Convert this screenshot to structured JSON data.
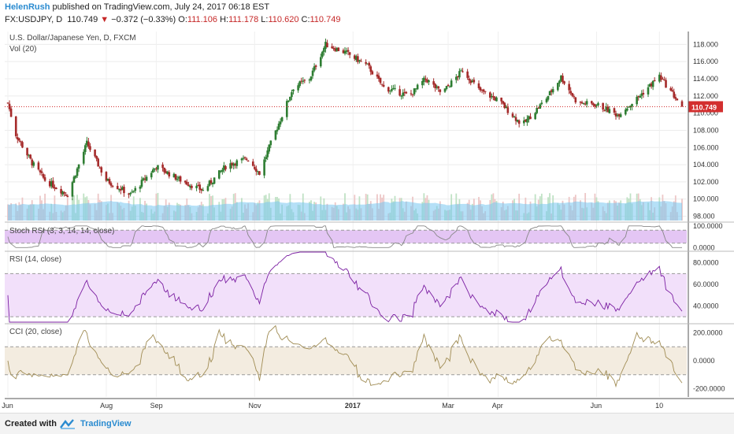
{
  "header": {
    "author": "HelenRush",
    "published": "published on TradingView.com, July 24, 2017 06:18 EST",
    "symbol": "FX:USDJPY, D",
    "last": "110.749",
    "down_arrow": "▼",
    "change": "−0.372 (−0.33%)",
    "o_label": "O:",
    "o_value": "111.106",
    "h_label": "H:",
    "h_value": "111.178",
    "l_label": "L:",
    "l_value": "110.620",
    "c_label": "C:",
    "c_value": "110.749"
  },
  "footer": {
    "created": "Created with",
    "brand": "TradingView"
  },
  "chart_data": {
    "type": "candlestick",
    "title": "U.S. Dollar/Japanese Yen, D, FXCM",
    "volume_label": "Vol (20)",
    "last_price_label": "110.749",
    "last_price_color": "#d32f2f",
    "up_color": "#2e7d32",
    "down_color": "#a52a2a",
    "volume_ma_color": "#79c6f0",
    "price_axis": {
      "ylim": [
        97.5,
        119.5
      ],
      "ticks": [
        "118.000",
        "116.000",
        "114.000",
        "112.000",
        "110.000",
        "108.000",
        "106.000",
        "104.000",
        "102.000",
        "100.000",
        "98.000"
      ]
    },
    "time_axis": {
      "labels": [
        "Jun",
        "Aug",
        "Sep",
        "Nov",
        "2017",
        "Mar",
        "Apr",
        "Jun",
        "10"
      ]
    },
    "price_anchors": [
      [
        "2016-06-01",
        111.2
      ],
      [
        "2016-06-06",
        107.5
      ],
      [
        "2016-06-16",
        104.2
      ],
      [
        "2016-06-24",
        102.2
      ],
      [
        "2016-07-08",
        100.5
      ],
      [
        "2016-07-20",
        106.5
      ],
      [
        "2016-08-01",
        102.2
      ],
      [
        "2016-08-16",
        100.5
      ],
      [
        "2016-09-01",
        103.8
      ],
      [
        "2016-09-15",
        102.3
      ],
      [
        "2016-09-30",
        101.0
      ],
      [
        "2016-10-15",
        104.0
      ],
      [
        "2016-10-28",
        104.7
      ],
      [
        "2016-11-04",
        103.0
      ],
      [
        "2016-11-10",
        106.0
      ],
      [
        "2016-11-25",
        113.0
      ],
      [
        "2016-12-05",
        114.0
      ],
      [
        "2016-12-15",
        118.0
      ],
      [
        "2016-12-28",
        117.0
      ],
      [
        "2017-01-10",
        115.5
      ],
      [
        "2017-01-20",
        113.0
      ],
      [
        "2017-02-05",
        112.0
      ],
      [
        "2017-02-15",
        114.0
      ],
      [
        "2017-02-25",
        112.3
      ],
      [
        "2017-03-10",
        115.0
      ],
      [
        "2017-03-20",
        112.7
      ],
      [
        "2017-04-01",
        111.5
      ],
      [
        "2017-04-16",
        108.6
      ],
      [
        "2017-04-30",
        111.5
      ],
      [
        "2017-05-10",
        114.2
      ],
      [
        "2017-05-20",
        111.2
      ],
      [
        "2017-06-01",
        111.0
      ],
      [
        "2017-06-14",
        109.8
      ],
      [
        "2017-06-25",
        111.5
      ],
      [
        "2017-07-10",
        114.3
      ],
      [
        "2017-07-24",
        110.75
      ]
    ],
    "indicators": {
      "stoch_rsi": {
        "label": "Stoch RSI (3, 3, 14, 14, close)",
        "ylim": [
          -10,
          110
        ],
        "ticks": [
          "100.0000",
          "0.0000"
        ],
        "band": [
          20,
          80
        ],
        "band_color": "#e4c6f4",
        "line_color": "#888888"
      },
      "rsi": {
        "label": "RSI (14, close)",
        "ylim": [
          25,
          90
        ],
        "ticks": [
          "80.0000",
          "60.0000",
          "40.0000"
        ],
        "band": [
          30,
          70
        ],
        "band_color": "#f2e0fa",
        "line_color": "#7b1fa2"
      },
      "cci": {
        "label": "CCI (20, close)",
        "ylim": [
          -260,
          260
        ],
        "ticks": [
          "200.0000",
          "0.0000",
          "-200.0000"
        ],
        "band": [
          -100,
          100
        ],
        "band_color": "#f3ece0",
        "line_color": "#a08c54"
      }
    }
  }
}
